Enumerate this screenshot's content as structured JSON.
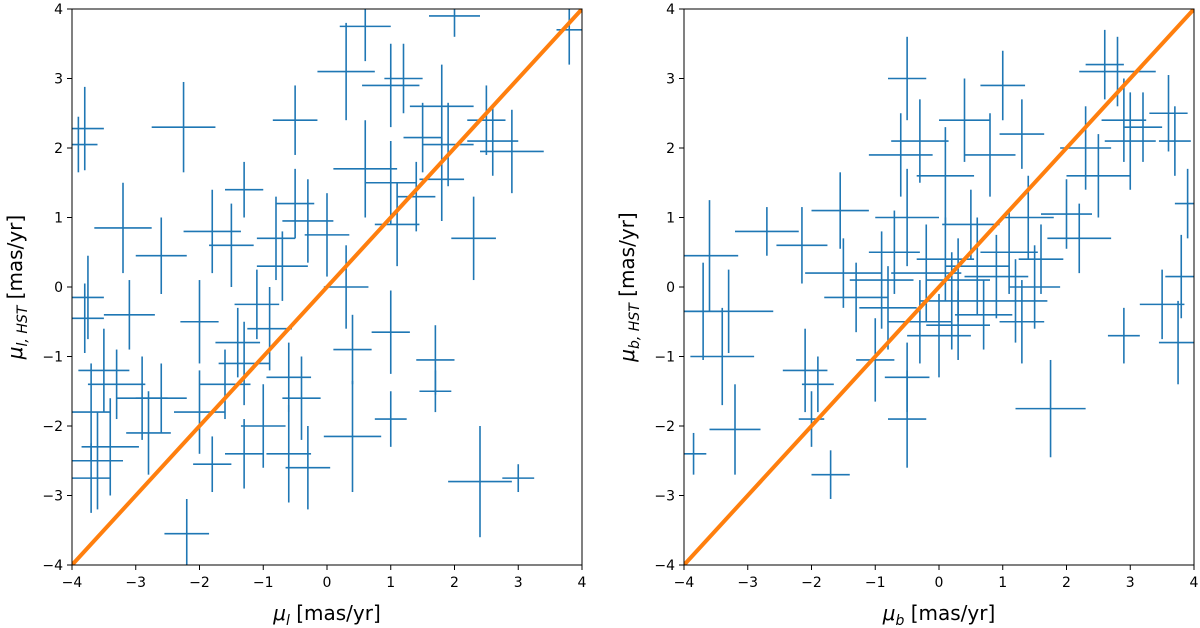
{
  "chart_data": [
    {
      "type": "scatter",
      "style": "errorbar",
      "title": "",
      "xlabel": "μ_l [mas/yr]",
      "xlabel_parts": {
        "symbol": "μ",
        "sub": "l",
        "unit": " [mas/yr]"
      },
      "ylabel": "μ_l,HST [mas/yr]",
      "ylabel_parts": {
        "symbol": "μ",
        "sub": "l, HST",
        "unit": " [mas/yr]"
      },
      "xlim": [
        -4,
        4
      ],
      "ylim": [
        -4,
        4
      ],
      "xticks": [
        "−4",
        "−3",
        "−2",
        "−1",
        "0",
        "1",
        "2",
        "3",
        "4"
      ],
      "yticks": [
        "−4",
        "−3",
        "−2",
        "−1",
        "0",
        "1",
        "2",
        "3",
        "4"
      ],
      "grid": false,
      "series_color": "#1f77b4",
      "reference_line": {
        "x": [
          -4,
          4
        ],
        "y": [
          -4,
          4
        ],
        "color": "#ff7f0e"
      },
      "points": [
        {
          "x": -3.8,
          "y": 2.28,
          "xerr": 0.3,
          "yerr": 0.6
        },
        {
          "x": -3.9,
          "y": 2.05,
          "xerr": 0.3,
          "yerr": 0.4
        },
        {
          "x": -2.25,
          "y": 2.3,
          "xerr": 0.5,
          "yerr": 0.65
        },
        {
          "x": -3.2,
          "y": 0.85,
          "xerr": 0.45,
          "yerr": 0.65
        },
        {
          "x": -2.6,
          "y": 0.45,
          "xerr": 0.4,
          "yerr": 0.55
        },
        {
          "x": -3.75,
          "y": -0.15,
          "xerr": 0.25,
          "yerr": 0.6
        },
        {
          "x": -3.8,
          "y": -0.45,
          "xerr": 0.3,
          "yerr": 0.5
        },
        {
          "x": -3.1,
          "y": -0.4,
          "xerr": 0.4,
          "yerr": 0.5
        },
        {
          "x": -3.5,
          "y": -1.2,
          "xerr": 0.4,
          "yerr": 0.6
        },
        {
          "x": -3.3,
          "y": -1.4,
          "xerr": 0.45,
          "yerr": 0.5
        },
        {
          "x": -2.9,
          "y": -1.6,
          "xerr": 0.4,
          "yerr": 0.6
        },
        {
          "x": -3.7,
          "y": -1.8,
          "xerr": 0.3,
          "yerr": 0.7
        },
        {
          "x": -3.4,
          "y": -2.3,
          "xerr": 0.45,
          "yerr": 0.7
        },
        {
          "x": -3.6,
          "y": -2.5,
          "xerr": 0.4,
          "yerr": 0.7
        },
        {
          "x": -2.8,
          "y": -2.1,
          "xerr": 0.35,
          "yerr": 0.6
        },
        {
          "x": -2.6,
          "y": -1.6,
          "xerr": 0.4,
          "yerr": 0.5
        },
        {
          "x": -3.7,
          "y": -2.75,
          "xerr": 0.3,
          "yerr": 0.5
        },
        {
          "x": -2.2,
          "y": -3.55,
          "xerr": 0.35,
          "yerr": 0.5
        },
        {
          "x": -1.8,
          "y": -2.55,
          "xerr": 0.3,
          "yerr": 0.4
        },
        {
          "x": -1.3,
          "y": -2.4,
          "xerr": 0.3,
          "yerr": 0.5
        },
        {
          "x": -2.0,
          "y": -1.8,
          "xerr": 0.4,
          "yerr": 0.6
        },
        {
          "x": -1.6,
          "y": -1.4,
          "xerr": 0.4,
          "yerr": 0.5
        },
        {
          "x": -1.4,
          "y": -0.8,
          "xerr": 0.35,
          "yerr": 0.5
        },
        {
          "x": -2.0,
          "y": -0.5,
          "xerr": 0.3,
          "yerr": 0.6
        },
        {
          "x": -1.1,
          "y": -0.25,
          "xerr": 0.35,
          "yerr": 0.5
        },
        {
          "x": -1.8,
          "y": 0.8,
          "xerr": 0.45,
          "yerr": 0.6
        },
        {
          "x": -1.5,
          "y": 0.6,
          "xerr": 0.35,
          "yerr": 0.6
        },
        {
          "x": -1.3,
          "y": 1.4,
          "xerr": 0.3,
          "yerr": 0.4
        },
        {
          "x": -0.8,
          "y": 0.7,
          "xerr": 0.3,
          "yerr": 0.6
        },
        {
          "x": -0.5,
          "y": 2.4,
          "xerr": 0.35,
          "yerr": 0.5
        },
        {
          "x": -0.5,
          "y": 1.2,
          "xerr": 0.3,
          "yerr": 0.5
        },
        {
          "x": -0.3,
          "y": 0.95,
          "xerr": 0.4,
          "yerr": 0.6
        },
        {
          "x": 0.0,
          "y": 0.75,
          "xerr": 0.35,
          "yerr": 0.6
        },
        {
          "x": -0.7,
          "y": 0.3,
          "xerr": 0.4,
          "yerr": 0.5
        },
        {
          "x": -0.9,
          "y": -0.6,
          "xerr": 0.35,
          "yerr": 0.6
        },
        {
          "x": -1.3,
          "y": -1.1,
          "xerr": 0.4,
          "yerr": 0.6
        },
        {
          "x": -0.6,
          "y": -1.3,
          "xerr": 0.35,
          "yerr": 0.5
        },
        {
          "x": -0.4,
          "y": -1.6,
          "xerr": 0.3,
          "yerr": 0.6
        },
        {
          "x": -1.0,
          "y": -2.0,
          "xerr": 0.35,
          "yerr": 0.6
        },
        {
          "x": -0.6,
          "y": -2.4,
          "xerr": 0.35,
          "yerr": 0.7
        },
        {
          "x": -0.3,
          "y": -2.6,
          "xerr": 0.35,
          "yerr": 0.6
        },
        {
          "x": 0.4,
          "y": -2.15,
          "xerr": 0.45,
          "yerr": 0.8
        },
        {
          "x": 0.4,
          "y": -0.9,
          "xerr": 0.3,
          "yerr": 0.5
        },
        {
          "x": 0.3,
          "y": 0.0,
          "xerr": 0.35,
          "yerr": 0.6
        },
        {
          "x": 0.6,
          "y": 1.7,
          "xerr": 0.5,
          "yerr": 0.7
        },
        {
          "x": 0.3,
          "y": 3.1,
          "xerr": 0.45,
          "yerr": 0.7
        },
        {
          "x": 0.6,
          "y": 3.75,
          "xerr": 0.4,
          "yerr": 0.5
        },
        {
          "x": 1.0,
          "y": 2.9,
          "xerr": 0.45,
          "yerr": 0.6
        },
        {
          "x": 1.2,
          "y": 3.0,
          "xerr": 0.3,
          "yerr": 0.5
        },
        {
          "x": 1.0,
          "y": 1.5,
          "xerr": 0.4,
          "yerr": 0.6
        },
        {
          "x": 1.4,
          "y": 1.3,
          "xerr": 0.3,
          "yerr": 0.5
        },
        {
          "x": 1.1,
          "y": 0.9,
          "xerr": 0.35,
          "yerr": 0.6
        },
        {
          "x": 1.8,
          "y": 1.55,
          "xerr": 0.35,
          "yerr": 0.6
        },
        {
          "x": 1.9,
          "y": 2.05,
          "xerr": 0.4,
          "yerr": 0.6
        },
        {
          "x": 1.5,
          "y": 2.15,
          "xerr": 0.3,
          "yerr": 0.5
        },
        {
          "x": 1.8,
          "y": 2.6,
          "xerr": 0.5,
          "yerr": 0.6
        },
        {
          "x": 2.3,
          "y": 0.7,
          "xerr": 0.35,
          "yerr": 0.6
        },
        {
          "x": 2.5,
          "y": 2.4,
          "xerr": 0.3,
          "yerr": 0.5
        },
        {
          "x": 2.9,
          "y": 1.95,
          "xerr": 0.5,
          "yerr": 0.6
        },
        {
          "x": 2.6,
          "y": 2.1,
          "xerr": 0.4,
          "yerr": 0.5
        },
        {
          "x": 2.0,
          "y": 3.9,
          "xerr": 0.4,
          "yerr": 0.3
        },
        {
          "x": 3.8,
          "y": 3.7,
          "xerr": 0.2,
          "yerr": 0.5
        },
        {
          "x": 1.0,
          "y": -0.65,
          "xerr": 0.3,
          "yerr": 0.6
        },
        {
          "x": 1.7,
          "y": -1.05,
          "xerr": 0.3,
          "yerr": 0.5
        },
        {
          "x": 1.7,
          "y": -1.5,
          "xerr": 0.25,
          "yerr": 0.3
        },
        {
          "x": 1.0,
          "y": -1.9,
          "xerr": 0.25,
          "yerr": 0.4
        },
        {
          "x": 2.4,
          "y": -2.8,
          "xerr": 0.5,
          "yerr": 0.8
        },
        {
          "x": 3.0,
          "y": -2.75,
          "xerr": 0.25,
          "yerr": 0.2
        }
      ]
    },
    {
      "type": "scatter",
      "style": "errorbar",
      "title": "",
      "xlabel": "μ_b [mas/yr]",
      "xlabel_parts": {
        "symbol": "μ",
        "sub": "b",
        "unit": " [mas/yr]"
      },
      "ylabel": "μ_b,HST [mas/yr]",
      "ylabel_parts": {
        "symbol": "μ",
        "sub": "b, HST",
        "unit": " [mas/yr]"
      },
      "xlim": [
        -4,
        4
      ],
      "ylim": [
        -4,
        4
      ],
      "xticks": [
        "−4",
        "−3",
        "−2",
        "−1",
        "0",
        "1",
        "2",
        "3",
        "4"
      ],
      "yticks": [
        "−4",
        "−3",
        "−2",
        "−1",
        "0",
        "1",
        "2",
        "3",
        "4"
      ],
      "grid": false,
      "series_color": "#1f77b4",
      "reference_line": {
        "x": [
          -4,
          4
        ],
        "y": [
          -4,
          4
        ],
        "color": "#ff7f0e"
      },
      "points": [
        {
          "x": -3.6,
          "y": 0.45,
          "xerr": 0.45,
          "yerr": 0.8
        },
        {
          "x": -3.7,
          "y": -0.35,
          "xerr": 0.3,
          "yerr": 0.7
        },
        {
          "x": -3.3,
          "y": -0.35,
          "xerr": 0.7,
          "yerr": 0.6
        },
        {
          "x": -3.4,
          "y": -1.0,
          "xerr": 0.5,
          "yerr": 0.7
        },
        {
          "x": -3.2,
          "y": -2.05,
          "xerr": 0.4,
          "yerr": 0.65
        },
        {
          "x": -3.85,
          "y": -2.4,
          "xerr": 0.2,
          "yerr": 0.3
        },
        {
          "x": -2.7,
          "y": 0.8,
          "xerr": 0.5,
          "yerr": 0.35
        },
        {
          "x": -2.15,
          "y": 0.6,
          "xerr": 0.4,
          "yerr": 0.55
        },
        {
          "x": -1.55,
          "y": 1.1,
          "xerr": 0.45,
          "yerr": 0.55
        },
        {
          "x": -2.1,
          "y": -1.2,
          "xerr": 0.35,
          "yerr": 0.6
        },
        {
          "x": -1.9,
          "y": -1.4,
          "xerr": 0.25,
          "yerr": 0.4
        },
        {
          "x": -2.0,
          "y": -1.9,
          "xerr": 0.2,
          "yerr": 0.4
        },
        {
          "x": -1.7,
          "y": -2.7,
          "xerr": 0.3,
          "yerr": 0.35
        },
        {
          "x": -1.5,
          "y": 0.2,
          "xerr": 0.6,
          "yerr": 0.5
        },
        {
          "x": -1.3,
          "y": -0.15,
          "xerr": 0.5,
          "yerr": 0.5
        },
        {
          "x": -1.0,
          "y": -1.05,
          "xerr": 0.3,
          "yerr": 0.6
        },
        {
          "x": -0.5,
          "y": -1.3,
          "xerr": 0.35,
          "yerr": 0.5
        },
        {
          "x": -0.5,
          "y": -1.9,
          "xerr": 0.3,
          "yerr": 0.7
        },
        {
          "x": -0.9,
          "y": 0.1,
          "xerr": 0.5,
          "yerr": 0.7
        },
        {
          "x": -0.8,
          "y": -0.3,
          "xerr": 0.45,
          "yerr": 0.6
        },
        {
          "x": -0.7,
          "y": 0.5,
          "xerr": 0.4,
          "yerr": 0.6
        },
        {
          "x": -0.6,
          "y": 1.9,
          "xerr": 0.5,
          "yerr": 0.6
        },
        {
          "x": -0.5,
          "y": 1.0,
          "xerr": 0.5,
          "yerr": 0.7
        },
        {
          "x": -0.3,
          "y": 2.1,
          "xerr": 0.45,
          "yerr": 0.6
        },
        {
          "x": -0.5,
          "y": 3.0,
          "xerr": 0.3,
          "yerr": 0.6
        },
        {
          "x": -0.3,
          "y": -0.5,
          "xerr": 0.5,
          "yerr": 0.6
        },
        {
          "x": -0.2,
          "y": 0.2,
          "xerr": 0.55,
          "yerr": 0.7
        },
        {
          "x": 0.0,
          "y": -0.7,
          "xerr": 0.5,
          "yerr": 0.6
        },
        {
          "x": 0.1,
          "y": 0.4,
          "xerr": 0.45,
          "yerr": 0.6
        },
        {
          "x": 0.1,
          "y": 1.6,
          "xerr": 0.45,
          "yerr": 0.7
        },
        {
          "x": 0.2,
          "y": -0.2,
          "xerr": 0.5,
          "yerr": 0.7
        },
        {
          "x": 0.3,
          "y": 0.1,
          "xerr": 0.5,
          "yerr": 0.6
        },
        {
          "x": 0.3,
          "y": -0.55,
          "xerr": 0.5,
          "yerr": 0.5
        },
        {
          "x": 0.4,
          "y": 2.4,
          "xerr": 0.4,
          "yerr": 0.6
        },
        {
          "x": 0.5,
          "y": 0.9,
          "xerr": 0.45,
          "yerr": 0.5
        },
        {
          "x": 0.6,
          "y": 0.3,
          "xerr": 0.5,
          "yerr": 0.7
        },
        {
          "x": 0.7,
          "y": -0.4,
          "xerr": 0.45,
          "yerr": 0.5
        },
        {
          "x": 0.8,
          "y": 1.9,
          "xerr": 0.4,
          "yerr": 0.6
        },
        {
          "x": 0.9,
          "y": 0.15,
          "xerr": 0.5,
          "yerr": 0.6
        },
        {
          "x": 1.0,
          "y": 2.9,
          "xerr": 0.35,
          "yerr": 0.5
        },
        {
          "x": 1.1,
          "y": 0.5,
          "xerr": 0.45,
          "yerr": 0.6
        },
        {
          "x": 1.2,
          "y": -0.2,
          "xerr": 0.5,
          "yerr": 0.6
        },
        {
          "x": 1.3,
          "y": 2.2,
          "xerr": 0.35,
          "yerr": 0.5
        },
        {
          "x": 1.4,
          "y": 1.0,
          "xerr": 0.4,
          "yerr": 0.6
        },
        {
          "x": 1.5,
          "y": 0.0,
          "xerr": 0.4,
          "yerr": 0.6
        },
        {
          "x": 1.6,
          "y": 0.4,
          "xerr": 0.35,
          "yerr": 0.5
        },
        {
          "x": 1.3,
          "y": -0.5,
          "xerr": 0.35,
          "yerr": 0.6
        },
        {
          "x": 1.75,
          "y": -1.75,
          "xerr": 0.55,
          "yerr": 0.7
        },
        {
          "x": 2.0,
          "y": 1.05,
          "xerr": 0.4,
          "yerr": 0.5
        },
        {
          "x": 2.2,
          "y": 0.7,
          "xerr": 0.5,
          "yerr": 0.5
        },
        {
          "x": 2.3,
          "y": 2.0,
          "xerr": 0.4,
          "yerr": 0.6
        },
        {
          "x": 2.5,
          "y": 1.6,
          "xerr": 0.5,
          "yerr": 0.6
        },
        {
          "x": 2.6,
          "y": 3.2,
          "xerr": 0.3,
          "yerr": 0.5
        },
        {
          "x": 2.8,
          "y": 3.1,
          "xerr": 0.6,
          "yerr": 0.5
        },
        {
          "x": 2.9,
          "y": 2.4,
          "xerr": 0.35,
          "yerr": 0.6
        },
        {
          "x": 3.0,
          "y": 2.1,
          "xerr": 0.4,
          "yerr": 0.7
        },
        {
          "x": 3.2,
          "y": 2.3,
          "xerr": 0.3,
          "yerr": 0.5
        },
        {
          "x": 2.9,
          "y": -0.7,
          "xerr": 0.25,
          "yerr": 0.4
        },
        {
          "x": 3.5,
          "y": -0.25,
          "xerr": 0.35,
          "yerr": 0.5
        },
        {
          "x": 3.6,
          "y": 2.5,
          "xerr": 0.3,
          "yerr": 0.55
        },
        {
          "x": 3.7,
          "y": 2.1,
          "xerr": 0.25,
          "yerr": 0.5
        },
        {
          "x": 3.9,
          "y": 1.2,
          "xerr": 0.2,
          "yerr": 0.5
        },
        {
          "x": 3.8,
          "y": 0.15,
          "xerr": 0.25,
          "yerr": 0.6
        },
        {
          "x": 3.75,
          "y": -0.8,
          "xerr": 0.3,
          "yerr": 0.6
        }
      ]
    }
  ]
}
